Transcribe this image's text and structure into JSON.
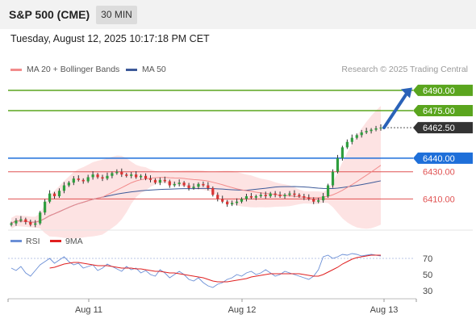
{
  "header": {
    "title": "S&P 500 (CME)",
    "timeframe": "30 MIN",
    "datetime": "Tuesday, August 12, 2025 10:17:18 PM CET"
  },
  "legend": {
    "ma20": {
      "label": "MA 20 + Bollinger Bands",
      "color": "#f28c8c"
    },
    "ma50": {
      "label": "MA 50",
      "color": "#3d5a99"
    },
    "credit": "Research © 2025 Trading Central"
  },
  "chart_data": [
    {
      "type": "line",
      "panel": "price",
      "x_ticks": [
        "Aug 11",
        "Aug 12",
        "Aug 13"
      ],
      "ylim": [
        6390,
        6500
      ],
      "levels": [
        {
          "value": 6490.0,
          "label": "6490.00",
          "kind": "resistance",
          "color": "#5aa51e"
        },
        {
          "value": 6475.0,
          "label": "6475.00",
          "kind": "resistance",
          "color": "#5aa51e"
        },
        {
          "value": 6462.5,
          "label": "6462.50",
          "kind": "last-price",
          "color": "#333333"
        },
        {
          "value": 6440.0,
          "label": "6440.00",
          "kind": "pivot",
          "color": "#1e6fd9"
        },
        {
          "value": 6430.0,
          "label": "6430.00",
          "kind": "support",
          "color": "#e05252"
        },
        {
          "value": 6410.0,
          "label": "6410.00",
          "kind": "support",
          "color": "#e05252"
        }
      ],
      "series": [
        {
          "values": [
            6392,
            6394,
            6395,
            6393,
            6391,
            6392,
            6400,
            6408,
            6414,
            6412,
            6416,
            6420,
            6422,
            6425,
            6424,
            6423,
            6426,
            6428,
            6426,
            6425,
            6427,
            6429,
            6430,
            6428,
            6427,
            6428,
            6426,
            6427,
            6425,
            6424,
            6422,
            6424,
            6423,
            6420,
            6421,
            6422,
            6420,
            6418,
            6419,
            6421,
            6420,
            6418,
            6413,
            6410,
            6408,
            6406,
            6407,
            6408,
            6410,
            6412,
            6411,
            6412,
            6413,
            6412,
            6414,
            6413,
            6412,
            6413,
            6414,
            6413,
            6412,
            6411,
            6410,
            6408,
            6409,
            6412,
            6420,
            6430,
            6440,
            6448,
            6452,
            6455,
            6457,
            6459,
            6460,
            6461,
            6462,
            6462.5
          ]
        }
      ]
    },
    {
      "type": "line",
      "panel": "rsi",
      "legend": [
        {
          "label": "RSI",
          "color": "#6b8fd6"
        },
        {
          "label": "9MA",
          "color": "#e02020"
        }
      ],
      "y_ticks": [
        70,
        50,
        30
      ],
      "ylim": [
        20,
        80
      ],
      "series": [
        {
          "name": "RSI",
          "values": [
            58,
            55,
            60,
            52,
            48,
            55,
            62,
            66,
            70,
            64,
            68,
            72,
            66,
            62,
            64,
            58,
            60,
            62,
            55,
            58,
            63,
            60,
            57,
            54,
            60,
            56,
            58,
            52,
            55,
            50,
            48,
            56,
            52,
            46,
            50,
            54,
            50,
            44,
            42,
            46,
            40,
            36,
            34,
            38,
            40,
            44,
            46,
            50,
            48,
            52,
            54,
            50,
            52,
            56,
            52,
            48,
            50,
            54,
            52,
            50,
            48,
            46,
            44,
            48,
            56,
            72,
            74,
            70,
            72,
            75,
            74,
            76,
            75,
            73,
            74,
            75,
            74,
            73
          ]
        },
        {
          "name": "9MA",
          "values": [
            null,
            null,
            null,
            null,
            null,
            null,
            null,
            null,
            58,
            59,
            61,
            63,
            64,
            65,
            65,
            64,
            63,
            62,
            61,
            61,
            61,
            60,
            59,
            58,
            58,
            58,
            57,
            57,
            56,
            55,
            54,
            54,
            53,
            52,
            52,
            51,
            50,
            49,
            48,
            47,
            46,
            44,
            42,
            41,
            41,
            41,
            42,
            43,
            44,
            45,
            47,
            48,
            49,
            50,
            51,
            51,
            51,
            51,
            51,
            51,
            51,
            50,
            49,
            48,
            48,
            50,
            53,
            56,
            59,
            63,
            66,
            69,
            71,
            72,
            73,
            74,
            74,
            74
          ]
        }
      ]
    }
  ]
}
